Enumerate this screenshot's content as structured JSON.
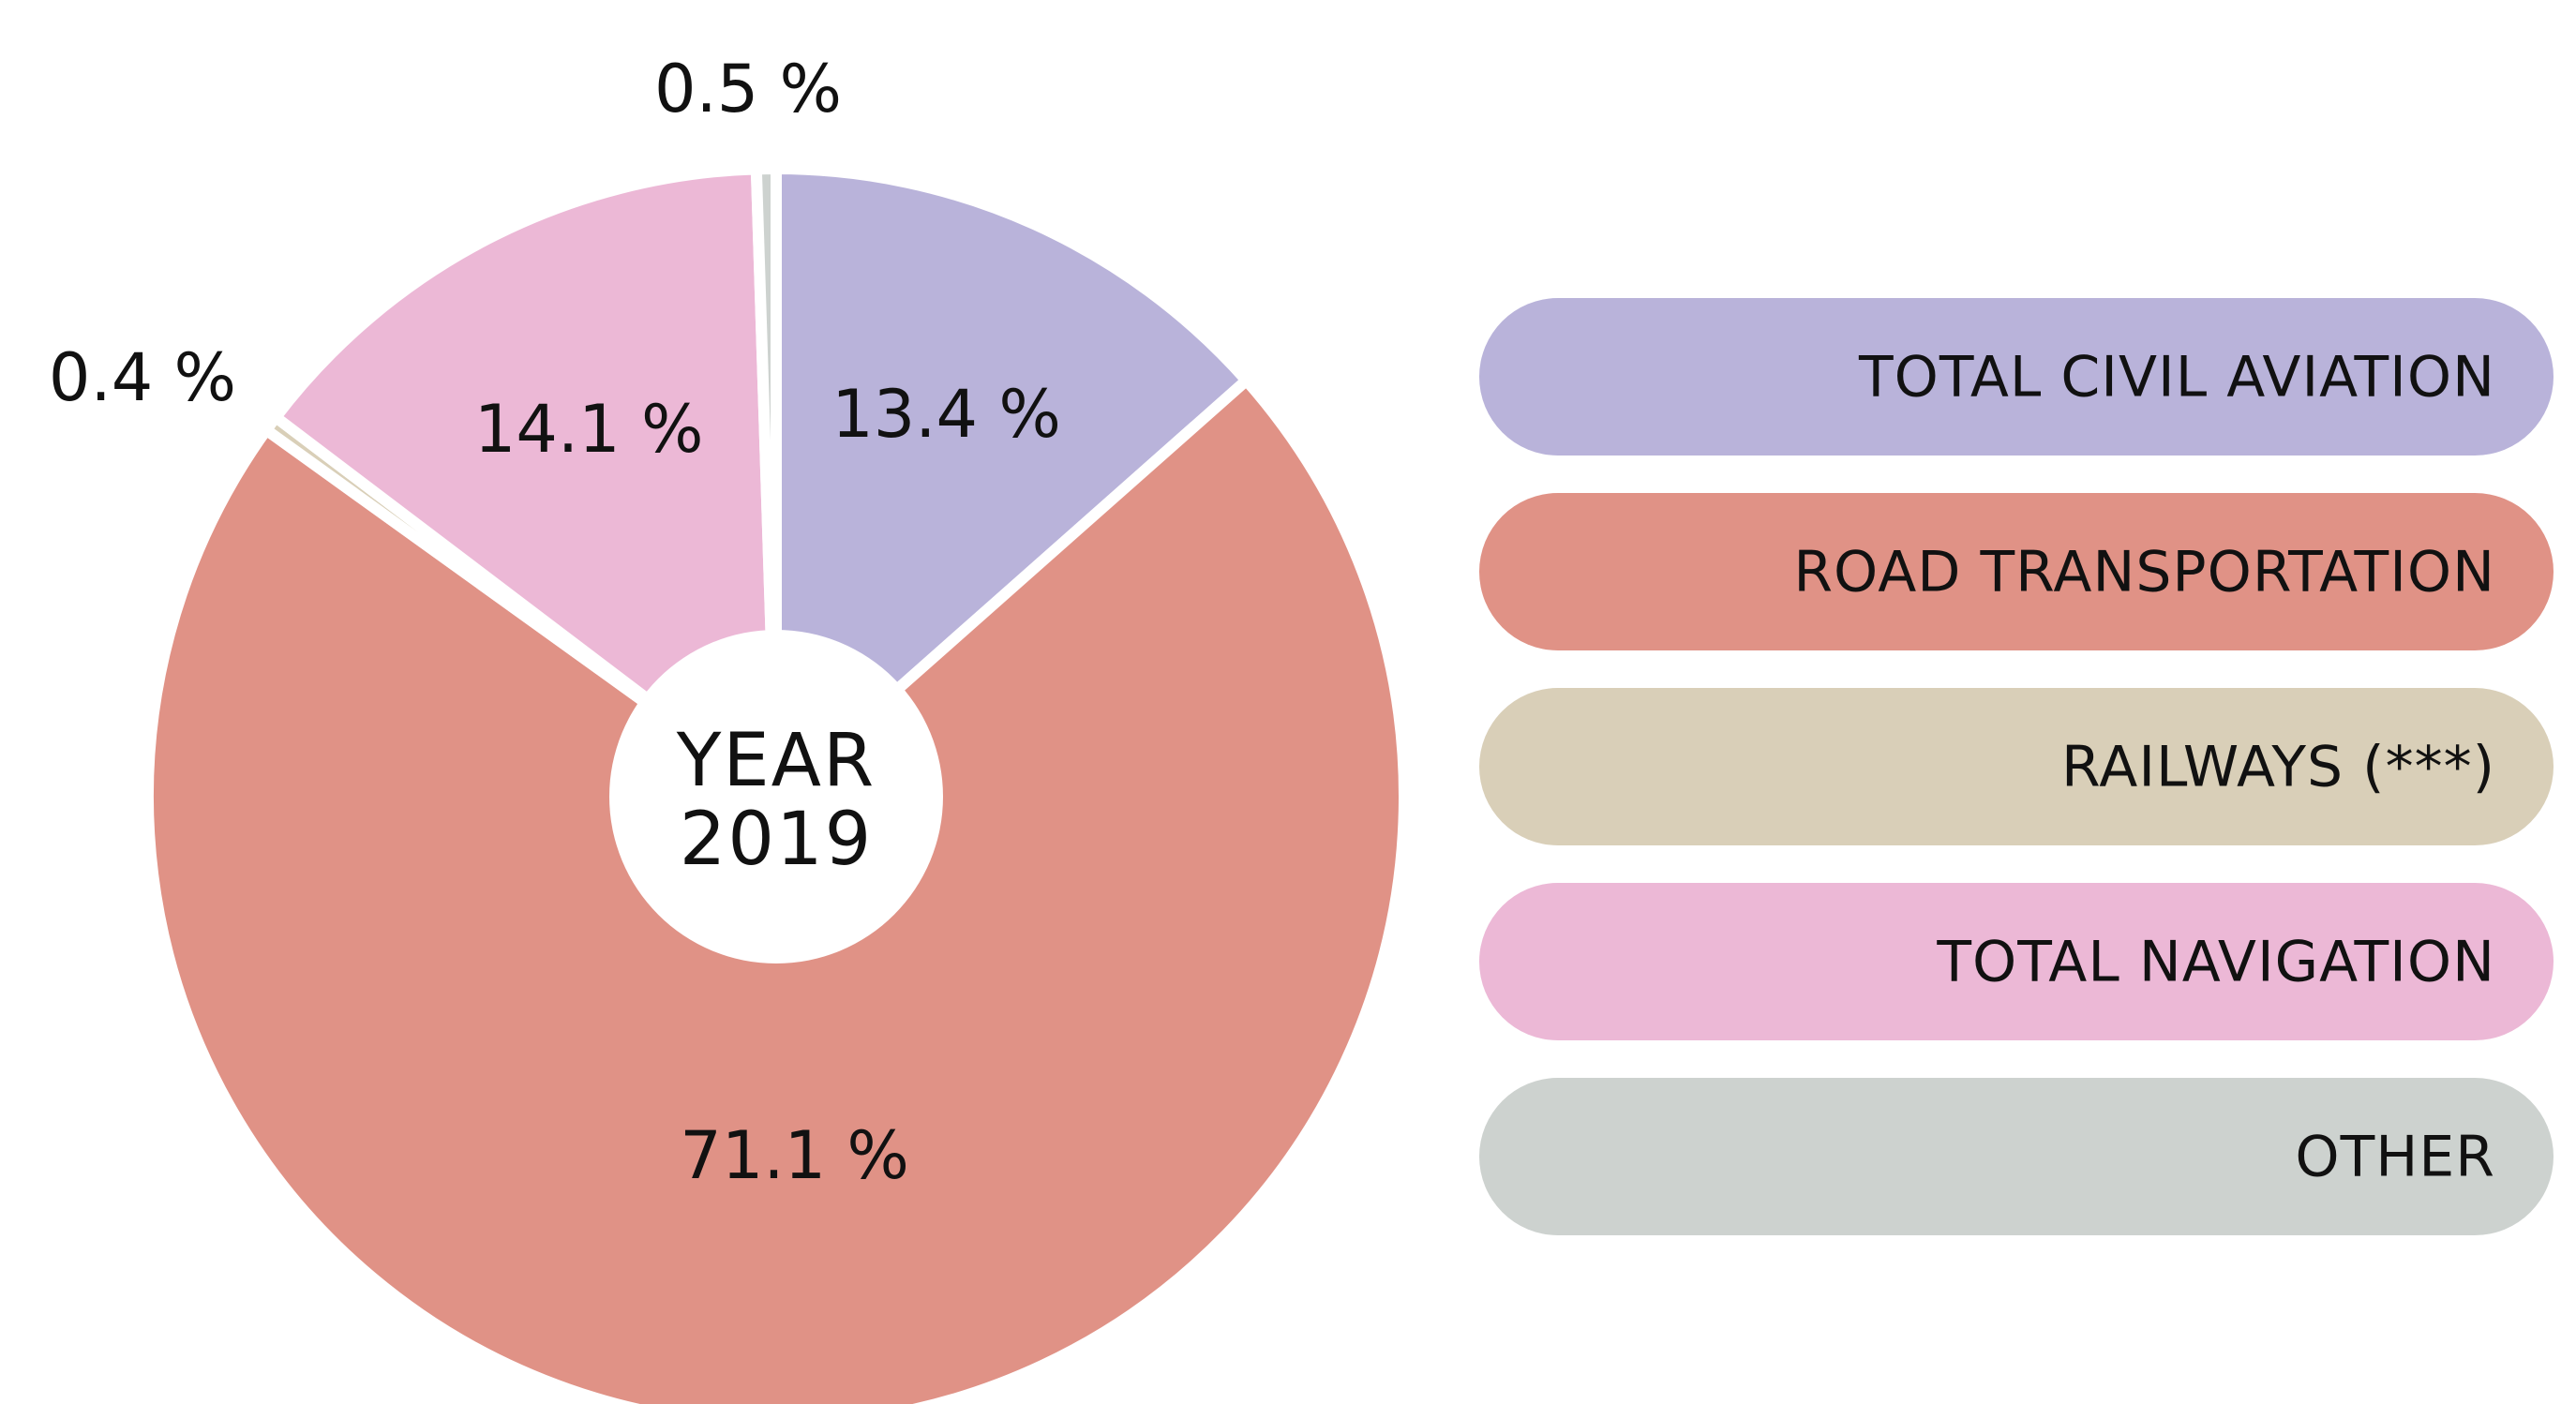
{
  "chart_data": {
    "type": "pie",
    "title": "",
    "center_label": [
      "YEAR",
      "2019"
    ],
    "slices": [
      {
        "name": "TOTAL CIVIL AVIATION",
        "value": 13.4,
        "label": "13.4 %",
        "color": "#b9b3da"
      },
      {
        "name": "ROAD TRANSPORTATION",
        "value": 71.1,
        "label": "71.1 %",
        "color": "#e09286"
      },
      {
        "name": "RAILWAYS (***)",
        "value": 0.4,
        "label": "0.4 %",
        "color": "#d9cfb8"
      },
      {
        "name": "TOTAL NAVIGATION",
        "value": 14.1,
        "label": "14.1 %",
        "color": "#ecb8d6"
      },
      {
        "name": "OTHER",
        "value": 0.5,
        "label": "0.5 %",
        "color": "#cdd2cf"
      }
    ],
    "legend": [
      {
        "name": "TOTAL CIVIL AVIATION",
        "color": "#b9b3da"
      },
      {
        "name": "ROAD TRANSPORTATION",
        "color": "#e09286"
      },
      {
        "name": "RAILWAYS (***)",
        "color": "#d9cfb8"
      },
      {
        "name": "TOTAL NAVIGATION",
        "color": "#ecb8d6"
      },
      {
        "name": "OTHER",
        "color": "#cdd2cf"
      }
    ],
    "legend_position": "right"
  }
}
